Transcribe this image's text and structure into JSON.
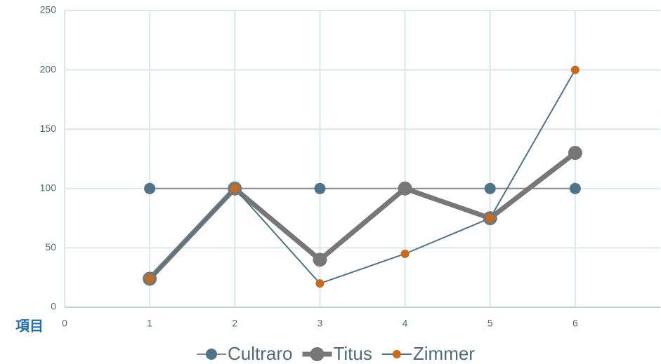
{
  "chart_data": {
    "type": "line",
    "xlabel": "項目",
    "xlim": [
      0,
      7
    ],
    "xticks": [
      0,
      1,
      2,
      3,
      4,
      5,
      6
    ],
    "ylim": [
      0,
      250
    ],
    "yticks": [
      0,
      50,
      100,
      150,
      200,
      250
    ],
    "grid": true,
    "x": [
      1,
      2,
      3,
      4,
      5,
      6
    ],
    "series": [
      {
        "name": "Cultraro",
        "color": "#8a8a8a",
        "marker_color": "#4d7489",
        "values": [
          100,
          100,
          100,
          100,
          100,
          100
        ]
      },
      {
        "name": "Titus",
        "color": "#777777",
        "marker_color": "#777777",
        "values": [
          24,
          100,
          40,
          100,
          75,
          130
        ]
      },
      {
        "name": "Zimmer",
        "color": "#4d7489",
        "marker_color": "#c96a1b",
        "values": [
          24,
          100,
          20,
          45,
          75,
          200
        ]
      }
    ],
    "legend": "bottom"
  }
}
